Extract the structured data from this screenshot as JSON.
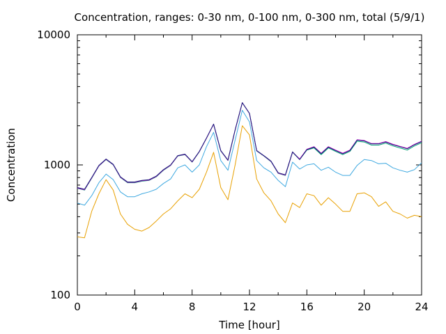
{
  "chart_data": {
    "type": "line",
    "title": "Concentration, ranges: 0-30 nm, 0-100 nm, 0-300 nm, total (5/9/1)",
    "xlabel": "Time [hour]",
    "ylabel": "Concentration",
    "xlim": [
      0,
      24
    ],
    "ylim": [
      100,
      10000
    ],
    "y_scale": "log",
    "grid": false,
    "x_ticks": [
      "0",
      "4",
      "8",
      "12",
      "16",
      "20",
      "24"
    ],
    "y_ticks": [
      "100",
      "1000",
      "10000"
    ],
    "x": [
      0,
      0.5,
      1,
      1.5,
      2,
      2.5,
      3,
      3.5,
      4,
      4.5,
      5,
      5.5,
      6,
      6.5,
      7,
      7.5,
      8,
      8.5,
      9,
      9.5,
      10,
      10.5,
      11,
      11.5,
      12,
      12.5,
      13,
      13.5,
      14,
      14.5,
      15,
      15.5,
      16,
      16.5,
      17,
      17.5,
      18,
      18.5,
      19,
      19.5,
      20,
      20.5,
      21,
      21.5,
      22,
      22.5,
      23,
      23.5,
      24
    ],
    "series": [
      {
        "color": "#e8a000",
        "values": [
          280,
          275,
          440,
          600,
          770,
          640,
          420,
          350,
          320,
          310,
          330,
          370,
          420,
          460,
          530,
          600,
          560,
          650,
          880,
          1250,
          670,
          540,
          1000,
          2000,
          1700,
          780,
          610,
          530,
          420,
          360,
          510,
          470,
          600,
          580,
          490,
          560,
          500,
          440,
          440,
          600,
          610,
          570,
          480,
          520,
          440,
          420,
          390,
          410,
          400
        ]
      },
      {
        "color": "#3da8e0",
        "values": [
          510,
          490,
          580,
          730,
          850,
          770,
          620,
          570,
          570,
          600,
          620,
          650,
          720,
          780,
          950,
          1000,
          880,
          1000,
          1380,
          1780,
          1080,
          910,
          1550,
          2630,
          2140,
          1080,
          950,
          880,
          760,
          680,
          1050,
          930,
          1000,
          1020,
          910,
          960,
          880,
          830,
          830,
          990,
          1100,
          1080,
          1020,
          1030,
          950,
          910,
          880,
          920,
          1040
        ]
      },
      {
        "color": "#009e73",
        "values": [
          660,
          640,
          790,
          980,
          1100,
          1000,
          800,
          730,
          730,
          750,
          760,
          810,
          910,
          990,
          1170,
          1200,
          1050,
          1260,
          1600,
          2050,
          1280,
          1080,
          1850,
          3000,
          2480,
          1280,
          1170,
          1060,
          860,
          830,
          1250,
          1100,
          1300,
          1350,
          1200,
          1350,
          1270,
          1200,
          1270,
          1520,
          1500,
          1420,
          1420,
          1470,
          1400,
          1350,
          1300,
          1400,
          1480
        ]
      },
      {
        "color": "#cc00cc",
        "values": [
          665,
          645,
          795,
          985,
          1105,
          1005,
          805,
          735,
          735,
          755,
          765,
          815,
          915,
          995,
          1175,
          1205,
          1055,
          1265,
          1605,
          2055,
          1285,
          1085,
          1855,
          3005,
          2485,
          1285,
          1175,
          1065,
          865,
          835,
          1255,
          1110,
          1320,
          1380,
          1230,
          1380,
          1300,
          1230,
          1300,
          1560,
          1540,
          1460,
          1460,
          1510,
          1440,
          1390,
          1340,
          1440,
          1520
        ]
      },
      {
        "color": "#1a1a7a",
        "values": [
          670,
          650,
          800,
          990,
          1110,
          1010,
          810,
          740,
          740,
          760,
          770,
          820,
          920,
          1000,
          1180,
          1210,
          1060,
          1270,
          1610,
          2060,
          1290,
          1090,
          1860,
          3010,
          2490,
          1290,
          1180,
          1070,
          870,
          840,
          1260,
          1100,
          1310,
          1370,
          1220,
          1370,
          1290,
          1220,
          1290,
          1550,
          1530,
          1450,
          1450,
          1500,
          1430,
          1380,
          1330,
          1430,
          1510
        ]
      }
    ]
  }
}
